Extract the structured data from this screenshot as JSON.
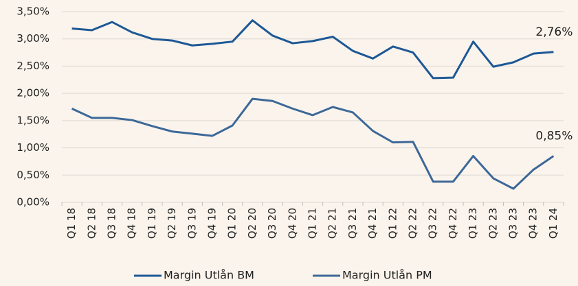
{
  "chart_data": {
    "type": "line",
    "categories": [
      "Q1 18",
      "Q2 18",
      "Q3 18",
      "Q4 18",
      "Q1 19",
      "Q2 19",
      "Q3 19",
      "Q4 19",
      "Q1 20",
      "Q2 20",
      "Q3 20",
      "Q4 20",
      "Q1 21",
      "Q2 21",
      "Q3 21",
      "Q4 21",
      "Q1 22",
      "Q2 22",
      "Q3 22",
      "Q4 22",
      "Q1 23",
      "Q2 23",
      "Q3 23",
      "Q4 23",
      "Q1 24"
    ],
    "series": [
      {
        "name": "Margin Utlån BM",
        "color": "#1d5896",
        "values": [
          3.19,
          3.16,
          3.31,
          3.12,
          3.0,
          2.97,
          2.88,
          2.91,
          2.95,
          3.34,
          3.06,
          2.92,
          2.96,
          3.04,
          2.78,
          2.64,
          2.86,
          2.75,
          2.28,
          2.29,
          2.95,
          2.49,
          2.57,
          2.73,
          2.76
        ],
        "value_labels": [
          null,
          null,
          null,
          null,
          null,
          null,
          null,
          null,
          null,
          null,
          null,
          null,
          null,
          null,
          null,
          null,
          null,
          null,
          null,
          null,
          null,
          null,
          null,
          null,
          "2,76%"
        ]
      },
      {
        "name": "Margin Utlån PM",
        "color": "#3c6898",
        "values": [
          1.72,
          1.55,
          1.55,
          1.51,
          1.4,
          1.3,
          1.26,
          1.22,
          1.41,
          1.9,
          1.86,
          1.72,
          1.6,
          1.75,
          1.65,
          1.31,
          1.1,
          1.11,
          0.38,
          0.38,
          0.85,
          0.44,
          0.25,
          0.6,
          0.85
        ],
        "value_labels": [
          null,
          null,
          null,
          null,
          null,
          null,
          null,
          null,
          null,
          null,
          null,
          null,
          null,
          null,
          null,
          null,
          null,
          null,
          null,
          null,
          null,
          null,
          null,
          null,
          "0,85%"
        ]
      }
    ],
    "ylim": [
      0,
      3.5
    ],
    "yticks": [
      {
        "value": 0,
        "label": "0,00%"
      },
      {
        "value": 0.5,
        "label": "0,50%"
      },
      {
        "value": 1,
        "label": "1,00%"
      },
      {
        "value": 1.5,
        "label": "1,50%"
      },
      {
        "value": 2,
        "label": "2,00%"
      },
      {
        "value": 2.5,
        "label": "2,50%"
      },
      {
        "value": 3,
        "label": "3,00%"
      },
      {
        "value": 3.5,
        "label": "3,50%"
      }
    ],
    "grid": true,
    "legend": "bottom"
  }
}
